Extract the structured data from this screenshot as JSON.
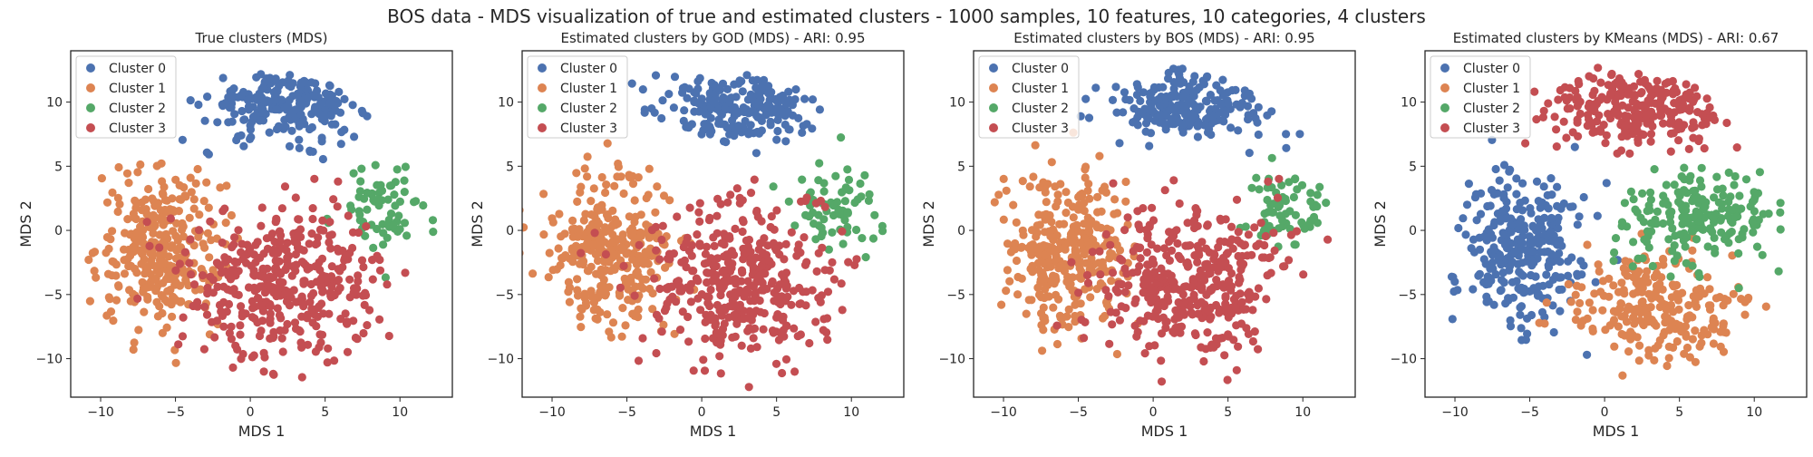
{
  "figure_title": "BOS data - MDS visualization of true and estimated clusters - 1000 samples, 10 features, 10 categories, 4 clusters",
  "colors": {
    "cluster_0": "#4c72b0",
    "cluster_1": "#dd8452",
    "cluster_2": "#55a868",
    "cluster_3": "#c44e52",
    "axis": "#262626",
    "background": "#ffffff"
  },
  "chart_data": [
    {
      "type": "scatter",
      "title": "True clusters (MDS)",
      "xlabel": "MDS 1",
      "ylabel": "MDS 2",
      "xlim": [
        -12,
        13.5
      ],
      "ylim": [
        -13,
        14
      ],
      "xticks": [
        -10,
        -5,
        0,
        5,
        10
      ],
      "yticks": [
        -10,
        -5,
        0,
        5,
        10
      ],
      "grid": false,
      "legend": "top-left",
      "legend_entries": [
        "Cluster 0",
        "Cluster 1",
        "Cluster 2",
        "Cluster 3"
      ],
      "series": [
        {
          "name": "Cluster 0",
          "color": "#4c72b0",
          "center": [
            2.5,
            9.8
          ],
          "spread": [
            3.6,
            1.8
          ],
          "count": 230
        },
        {
          "name": "Cluster 1",
          "color": "#dd8452",
          "center": [
            -6.0,
            -1.5
          ],
          "spread": [
            2.7,
            4.0
          ],
          "count": 310
        },
        {
          "name": "Cluster 2",
          "color": "#55a868",
          "center": [
            9.0,
            1.5
          ],
          "spread": [
            2.0,
            2.3
          ],
          "count": 70
        },
        {
          "name": "Cluster 3",
          "color": "#c44e52",
          "center": [
            2.5,
            -4.0
          ],
          "spread": [
            4.2,
            4.0
          ],
          "count": 390
        }
      ]
    },
    {
      "type": "scatter",
      "title": "Estimated clusters by GOD (MDS) - ARI: 0.95",
      "xlabel": "MDS 1",
      "ylabel": "MDS 2",
      "xlim": [
        -12,
        13.5
      ],
      "ylim": [
        -13,
        14
      ],
      "xticks": [
        -10,
        -5,
        0,
        5,
        10
      ],
      "yticks": [
        -10,
        -5,
        0,
        5,
        10
      ],
      "grid": false,
      "legend": "top-left",
      "legend_entries": [
        "Cluster 0",
        "Cluster 1",
        "Cluster 2",
        "Cluster 3"
      ],
      "series": [
        {
          "name": "Cluster 0",
          "color": "#4c72b0",
          "center": [
            2.5,
            9.8
          ],
          "spread": [
            3.6,
            1.8
          ],
          "count": 225
        },
        {
          "name": "Cluster 1",
          "color": "#dd8452",
          "center": [
            -6.0,
            -1.5
          ],
          "spread": [
            2.7,
            4.0
          ],
          "count": 320
        },
        {
          "name": "Cluster 2",
          "color": "#55a868",
          "center": [
            9.0,
            1.5
          ],
          "spread": [
            2.0,
            2.3
          ],
          "count": 70
        },
        {
          "name": "Cluster 3",
          "color": "#c44e52",
          "center": [
            2.5,
            -4.0
          ],
          "spread": [
            4.2,
            4.0
          ],
          "count": 385
        }
      ]
    },
    {
      "type": "scatter",
      "title": "Estimated clusters by BOS (MDS) - ARI: 0.95",
      "xlabel": "MDS 1",
      "ylabel": "MDS 2",
      "xlim": [
        -12,
        13.5
      ],
      "ylim": [
        -13,
        14
      ],
      "xticks": [
        -10,
        -5,
        0,
        5,
        10
      ],
      "yticks": [
        -10,
        -5,
        0,
        5,
        10
      ],
      "grid": false,
      "legend": "top-left",
      "legend_entries": [
        "Cluster 0",
        "Cluster 1",
        "Cluster 2",
        "Cluster 3"
      ],
      "series": [
        {
          "name": "Cluster 0",
          "color": "#4c72b0",
          "center": [
            2.5,
            9.8
          ],
          "spread": [
            3.6,
            1.8
          ],
          "count": 225
        },
        {
          "name": "Cluster 1",
          "color": "#dd8452",
          "center": [
            -6.0,
            -1.5
          ],
          "spread": [
            2.7,
            4.0
          ],
          "count": 320
        },
        {
          "name": "Cluster 2",
          "color": "#55a868",
          "center": [
            9.0,
            1.5
          ],
          "spread": [
            2.0,
            2.3
          ],
          "count": 70
        },
        {
          "name": "Cluster 3",
          "color": "#c44e52",
          "center": [
            2.5,
            -4.0
          ],
          "spread": [
            4.2,
            4.0
          ],
          "count": 385
        }
      ]
    },
    {
      "type": "scatter",
      "title": "Estimated clusters by KMeans (MDS) - ARI: 0.67",
      "xlabel": "MDS 1",
      "ylabel": "MDS 2",
      "xlim": [
        -12,
        13.5
      ],
      "ylim": [
        -13,
        14
      ],
      "xticks": [
        -10,
        -5,
        0,
        5,
        10
      ],
      "yticks": [
        -10,
        -5,
        0,
        5,
        10
      ],
      "grid": false,
      "legend": "top-left",
      "legend_entries": [
        "Cluster 0",
        "Cluster 1",
        "Cluster 2",
        "Cluster 3"
      ],
      "series": [
        {
          "name": "Cluster 0",
          "color": "#4c72b0",
          "center": [
            -5.8,
            -1.5
          ],
          "spread": [
            2.6,
            3.8
          ],
          "count": 300
        },
        {
          "name": "Cluster 1",
          "color": "#dd8452",
          "center": [
            3.5,
            -6.0
          ],
          "spread": [
            3.4,
            2.6
          ],
          "count": 240
        },
        {
          "name": "Cluster 2",
          "color": "#55a868",
          "center": [
            6.5,
            1.0
          ],
          "spread": [
            3.2,
            2.4
          ],
          "count": 200
        },
        {
          "name": "Cluster 3",
          "color": "#c44e52",
          "center": [
            2.0,
            9.5
          ],
          "spread": [
            4.0,
            2.0
          ],
          "count": 260
        }
      ]
    }
  ]
}
